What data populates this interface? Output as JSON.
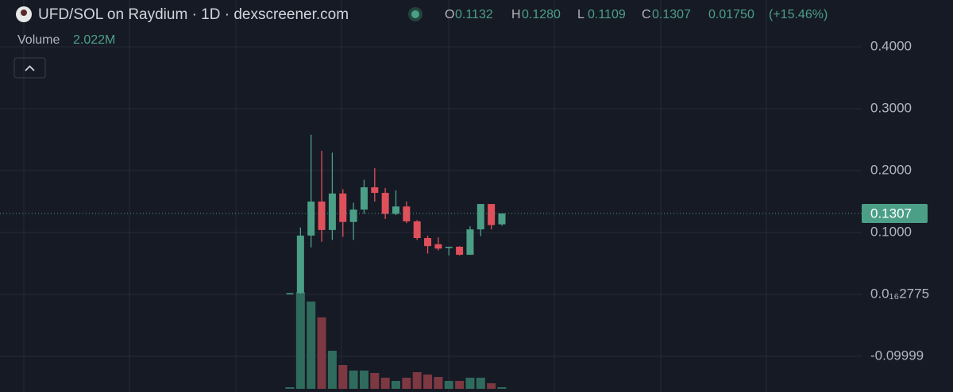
{
  "header": {
    "title": "UFD/SOL on Raydium · 1D · dexscreener.com",
    "ohlc": [
      {
        "key": "O",
        "value": "0.1132"
      },
      {
        "key": "H",
        "value": "0.1280"
      },
      {
        "key": "L",
        "value": "0.1109"
      },
      {
        "key": "C",
        "value": "0.1307"
      }
    ],
    "change": "0.01750",
    "change_pct": "(+15.46%)"
  },
  "chart_data": {
    "type": "candlestick",
    "categories": [
      null,
      null,
      null,
      null,
      null,
      null,
      null,
      null,
      null,
      null,
      null,
      null,
      null,
      null,
      null,
      null,
      null,
      null,
      null,
      null,
      null
    ],
    "open": [
      0.001,
      0.002,
      0.095,
      0.15,
      0.104,
      0.163,
      0.117,
      0.137,
      0.173,
      0.164,
      0.13,
      0.142,
      0.118,
      0.091,
      0.081,
      0.075,
      0.077,
      0.064,
      0.105,
      0.146,
      0.1132
    ],
    "high": [
      0.002,
      0.108,
      0.258,
      0.232,
      0.229,
      0.17,
      0.148,
      0.185,
      0.204,
      0.172,
      0.168,
      0.15,
      0.12,
      0.095,
      0.092,
      0.077,
      0.078,
      0.11,
      0.146,
      0.146,
      0.128
    ],
    "low": [
      0.0,
      0.001,
      0.076,
      0.085,
      0.088,
      0.093,
      0.088,
      0.13,
      0.15,
      0.122,
      0.128,
      0.115,
      0.088,
      0.066,
      0.071,
      0.063,
      0.063,
      0.064,
      0.094,
      0.105,
      0.1109
    ],
    "close": [
      0.002,
      0.095,
      0.15,
      0.104,
      0.163,
      0.117,
      0.137,
      0.173,
      0.164,
      0.13,
      0.142,
      0.118,
      0.091,
      0.078,
      0.074,
      0.077,
      0.064,
      0.105,
      0.146,
      0.112,
      0.1307
    ],
    "volume_name": "Volume",
    "volume": [
      2000000,
      122000000,
      110000000,
      90000000,
      48000000,
      30000000,
      23000000,
      23000000,
      20000000,
      14000000,
      10000000,
      14000000,
      21000000,
      18000000,
      15000000,
      10000000,
      10000000,
      14000000,
      14000000,
      7000000,
      2022000
    ],
    "volume_last_label": "2.022M",
    "volume_ylim": [
      0,
      490000000
    ],
    "ylim": [
      -0.1577,
      0.4756
    ],
    "yticks": [
      {
        "value": 0.4,
        "label": "0.4000"
      },
      {
        "value": 0.3,
        "label": "0.3000"
      },
      {
        "value": 0.2,
        "label": "0.2000"
      },
      {
        "value": 0.1,
        "label": "0.1000"
      },
      {
        "value": 2.775e-17,
        "label": "0.0₁₆2775"
      },
      -0.09999
    ],
    "grid": true,
    "up_color": "#4c9f87",
    "down_color": "#e0505a",
    "up_volume_color": "#2f6b5d",
    "down_volume_color": "#7d3842"
  }
}
